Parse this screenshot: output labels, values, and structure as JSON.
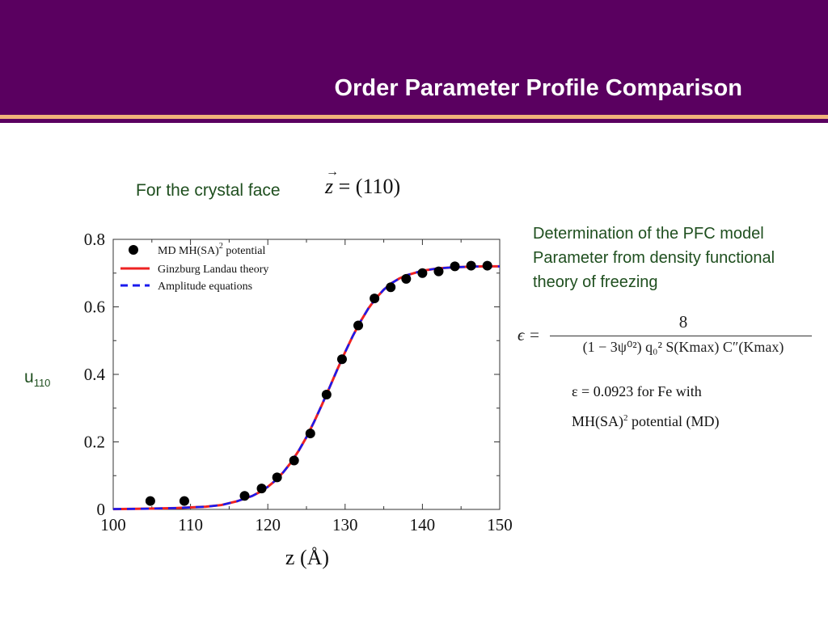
{
  "slide": {
    "title": "Order Parameter Profile Comparison",
    "face_label": "For the crystal face",
    "face_eq_var": "z",
    "face_eq_rest": " = (110)",
    "ylabel_main": "u",
    "ylabel_sub": "110",
    "description": "Determination of the PFC model Parameter from density functional theory of freezing",
    "formula_lhs": "ϵ =",
    "formula_num": "8",
    "formula_den": "(1 − 3ψ⁰²) q₀² S(Kmax) C″(Kmax)",
    "result_line1": "ε = 0.0923 for Fe with",
    "result_line2_main": "MH(SA)",
    "result_line2_sup": "2",
    "result_line2_tail": "  potential (MD)"
  },
  "colors": {
    "header": "#5a0060",
    "accent": "#f0b37a",
    "text_green": "#1f4f1f",
    "red": "#ee2222",
    "blue": "#1a1aee"
  },
  "chart_data": {
    "type": "line",
    "xlabel": "z (Å)",
    "ylabel": "",
    "xlim": [
      100,
      150
    ],
    "ylim": [
      0,
      0.8
    ],
    "xticks": [
      "100",
      "110",
      "120",
      "130",
      "140",
      "150"
    ],
    "yticks": [
      "0",
      "0.2",
      "0.4",
      "0.6",
      "0.8"
    ],
    "legend_position": "top-left",
    "series": [
      {
        "name": "MD MH(SA)",
        "name_sup": "2",
        "name_tail": " potential",
        "kind": "scatter",
        "color": "#000000",
        "x": [
          104.8,
          109.2,
          117.0,
          119.2,
          121.2,
          123.4,
          125.5,
          127.6,
          129.6,
          131.7,
          133.8,
          135.9,
          137.9,
          140.0,
          142.1,
          144.2,
          146.3,
          148.4
        ],
        "y": [
          0.025,
          0.025,
          0.04,
          0.062,
          0.095,
          0.145,
          0.225,
          0.34,
          0.445,
          0.545,
          0.625,
          0.658,
          0.683,
          0.7,
          0.705,
          0.72,
          0.722,
          0.722
        ]
      },
      {
        "name": "Ginzburg Landau theory",
        "kind": "line",
        "color": "#ee2222",
        "x": [
          100,
          104,
          108,
          112,
          114,
          116,
          118,
          119,
          120,
          121,
          122,
          123,
          124,
          125,
          126,
          127,
          128,
          129,
          130,
          131,
          132,
          133,
          134,
          135,
          136,
          137,
          138,
          140,
          142,
          144,
          146,
          148,
          150
        ],
        "y": [
          0.001,
          0.002,
          0.004,
          0.008,
          0.013,
          0.024,
          0.04,
          0.052,
          0.067,
          0.086,
          0.11,
          0.139,
          0.174,
          0.214,
          0.26,
          0.31,
          0.362,
          0.415,
          0.466,
          0.514,
          0.557,
          0.595,
          0.626,
          0.651,
          0.67,
          0.684,
          0.694,
          0.707,
          0.714,
          0.717,
          0.719,
          0.72,
          0.72
        ]
      },
      {
        "name": "Amplitude equations",
        "kind": "dashed",
        "color": "#1a1aee",
        "x": [
          100,
          104,
          108,
          112,
          114,
          116,
          118,
          119,
          120,
          121,
          122,
          123,
          124,
          125,
          126,
          127,
          128,
          129,
          130,
          131,
          132,
          133,
          134,
          135,
          136,
          137,
          138,
          140,
          142,
          144,
          146,
          148,
          150
        ],
        "y": [
          0.001,
          0.002,
          0.004,
          0.008,
          0.013,
          0.024,
          0.04,
          0.052,
          0.067,
          0.086,
          0.11,
          0.139,
          0.174,
          0.214,
          0.26,
          0.31,
          0.362,
          0.415,
          0.466,
          0.514,
          0.557,
          0.595,
          0.626,
          0.651,
          0.67,
          0.684,
          0.694,
          0.707,
          0.714,
          0.717,
          0.719,
          0.72,
          0.72
        ]
      }
    ]
  }
}
